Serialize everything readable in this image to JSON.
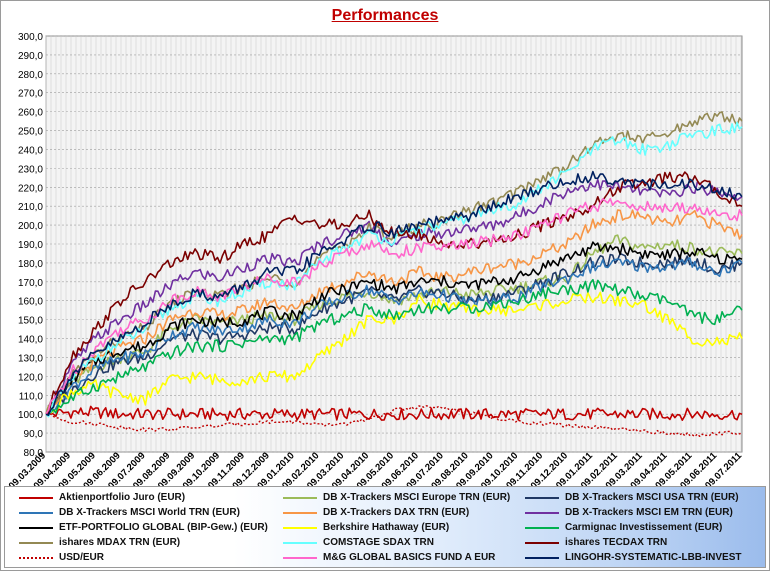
{
  "title": "Performances",
  "chart_data": {
    "type": "line",
    "title": "Performances",
    "xlabel": "",
    "ylabel": "",
    "ylim": [
      80,
      300
    ],
    "y_ticks": [
      "80,0",
      "90,0",
      "100,0",
      "110,0",
      "120,0",
      "130,0",
      "140,0",
      "150,0",
      "160,0",
      "170,0",
      "180,0",
      "190,0",
      "200,0",
      "210,0",
      "220,0",
      "230,0",
      "240,0",
      "250,0",
      "260,0",
      "270,0",
      "280,0",
      "290,0",
      "300,0"
    ],
    "x_tick_labels": [
      "09.03.2009",
      "09.04.2009",
      "09.05.2009",
      "09.06.2009",
      "09.07.2009",
      "09.08.2009",
      "09.09.2009",
      "09.10.2009",
      "09.11.2009",
      "09.12.2009",
      "09.01.2010",
      "09.02.2010",
      "09.03.2010",
      "09.04.2010",
      "09.05.2010",
      "09.06.2010",
      "09.07.2010",
      "09.08.2010",
      "09.09.2010",
      "09.10.2010",
      "09.11.2010",
      "09.12.2010",
      "09.01.2011",
      "09.02.2011",
      "09.03.2011",
      "09.04.2011",
      "09.05.2011",
      "09.06.2011",
      "09.07.2011"
    ],
    "grid": true,
    "legend_position": "bottom",
    "series": [
      {
        "name": "Aktienportfolio Juro (EUR)",
        "color": "#c00000",
        "style": "solid",
        "values": [
          100,
          101,
          101,
          100,
          100,
          100,
          100,
          100,
          100,
          100,
          100,
          100,
          100,
          100,
          100,
          100,
          100,
          100,
          100,
          100,
          100,
          100,
          100,
          100,
          100,
          100,
          100,
          100,
          100
        ]
      },
      {
        "name": "DB X-Trackers MSCI Europe  TRN (EUR)",
        "color": "#9bbb59",
        "style": "solid",
        "values": [
          100,
          116,
          125,
          130,
          133,
          145,
          150,
          148,
          150,
          152,
          150,
          158,
          162,
          165,
          160,
          163,
          165,
          163,
          165,
          167,
          170,
          172,
          185,
          192,
          188,
          190,
          188,
          185,
          185
        ]
      },
      {
        "name": "DB X-Trackers MSCI USA TRN (EUR)",
        "color": "#1f3864",
        "style": "solid",
        "values": [
          100,
          112,
          122,
          128,
          130,
          140,
          142,
          140,
          142,
          146,
          145,
          155,
          160,
          165,
          160,
          165,
          164,
          160,
          162,
          165,
          170,
          175,
          180,
          182,
          180,
          180,
          182,
          176,
          180
        ]
      },
      {
        "name": "DB X-Trackers MSCI World TRN (EUR)",
        "color": "#2e75b6",
        "style": "solid",
        "values": [
          100,
          114,
          124,
          130,
          132,
          142,
          146,
          144,
          146,
          150,
          148,
          157,
          162,
          166,
          160,
          164,
          163,
          159,
          160,
          162,
          168,
          172,
          178,
          180,
          178,
          178,
          180,
          175,
          180
        ]
      },
      {
        "name": "DB X-Trackers DAX TRN (EUR)",
        "color": "#f79646",
        "style": "solid",
        "values": [
          100,
          118,
          128,
          135,
          140,
          150,
          155,
          152,
          155,
          160,
          155,
          165,
          170,
          175,
          170,
          175,
          172,
          175,
          178,
          180,
          185,
          190,
          200,
          205,
          205,
          200,
          205,
          200,
          195
        ]
      },
      {
        "name": "DB X-Trackers  MSCI EM TRN (EUR)",
        "color": "#7030a0",
        "style": "solid",
        "values": [
          100,
          125,
          140,
          150,
          158,
          168,
          175,
          172,
          178,
          182,
          180,
          190,
          195,
          200,
          190,
          195,
          196,
          198,
          200,
          205,
          212,
          218,
          222,
          220,
          218,
          216,
          220,
          218,
          215
        ]
      },
      {
        "name": "ETF-PORTFOLIO GLOBAL (BIP-Gew.) (EUR)",
        "color": "#000000",
        "style": "solid",
        "values": [
          100,
          118,
          128,
          134,
          136,
          146,
          150,
          148,
          150,
          154,
          152,
          162,
          166,
          170,
          166,
          170,
          170,
          168,
          170,
          172,
          178,
          183,
          188,
          188,
          185,
          184,
          186,
          182,
          182
        ]
      },
      {
        "name": "Berkshire Hathaway (EUR)",
        "color": "#ffff00",
        "style": "solid",
        "values": [
          100,
          112,
          115,
          110,
          108,
          118,
          120,
          118,
          118,
          120,
          120,
          130,
          140,
          150,
          150,
          160,
          158,
          155,
          155,
          155,
          158,
          160,
          162,
          160,
          158,
          150,
          140,
          138,
          140
        ]
      },
      {
        "name": "Carmignac Investissement (EUR)",
        "color": "#00b050",
        "style": "solid",
        "values": [
          100,
          108,
          115,
          120,
          125,
          132,
          136,
          136,
          138,
          140,
          140,
          148,
          152,
          156,
          152,
          156,
          156,
          156,
          158,
          160,
          164,
          166,
          168,
          166,
          162,
          160,
          152,
          150,
          155
        ]
      },
      {
        "name": "ishares MDAX TRN (EUR)",
        "color": "#938953",
        "style": "solid",
        "values": [
          100,
          120,
          132,
          140,
          146,
          158,
          165,
          162,
          168,
          172,
          170,
          182,
          190,
          198,
          194,
          200,
          202,
          208,
          212,
          218,
          225,
          232,
          242,
          248,
          245,
          248,
          255,
          258,
          255
        ]
      },
      {
        "name": "COMSTAGE SDAX TRN",
        "color": "#66ffff",
        "style": "solid",
        "values": [
          100,
          118,
          130,
          138,
          145,
          156,
          162,
          160,
          165,
          170,
          168,
          180,
          188,
          195,
          192,
          198,
          200,
          204,
          208,
          212,
          220,
          228,
          240,
          245,
          240,
          242,
          248,
          250,
          252
        ]
      },
      {
        "name": "ishares TECDAX TRN",
        "color": "#7b0000",
        "style": "solid",
        "values": [
          100,
          130,
          145,
          160,
          170,
          180,
          185,
          182,
          190,
          195,
          205,
          200,
          200,
          205,
          195,
          195,
          190,
          190,
          192,
          195,
          200,
          205,
          210,
          220,
          222,
          225,
          225,
          218,
          210
        ]
      },
      {
        "name": "USD/EUR",
        "color": "#c00000",
        "style": "dotted",
        "values": [
          100,
          96,
          95,
          93,
          92,
          92,
          93,
          94,
          95,
          96,
          96,
          94,
          95,
          97,
          102,
          104,
          103,
          101,
          98,
          96,
          95,
          94,
          93,
          92,
          91,
          90,
          89,
          90,
          90
        ]
      },
      {
        "name": "M&G GLOBAL BASICS FUND A EUR",
        "color": "#ff66cc",
        "style": "solid",
        "values": [
          100,
          122,
          135,
          145,
          150,
          160,
          165,
          162,
          168,
          172,
          170,
          178,
          185,
          190,
          185,
          188,
          188,
          190,
          192,
          195,
          200,
          206,
          210,
          212,
          210,
          208,
          210,
          205,
          205
        ]
      },
      {
        "name": "LINGOHR-SYSTEMATIC-LBB-INVEST",
        "color": "#002060",
        "style": "solid",
        "values": [
          100,
          120,
          132,
          140,
          148,
          158,
          164,
          162,
          168,
          175,
          175,
          185,
          192,
          200,
          196,
          200,
          202,
          205,
          210,
          215,
          220,
          223,
          226,
          224,
          222,
          220,
          222,
          218,
          215
        ]
      }
    ]
  }
}
